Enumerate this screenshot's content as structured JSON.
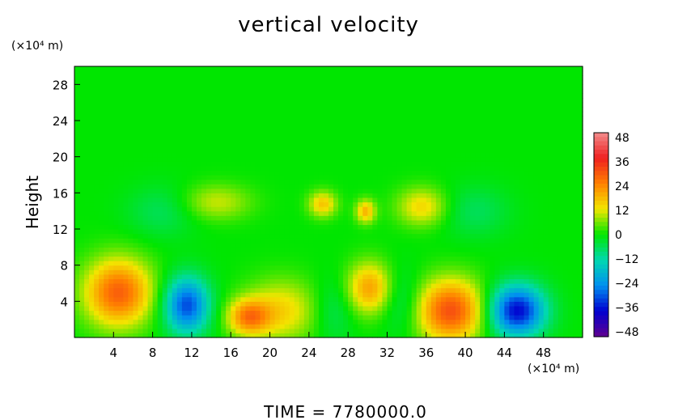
{
  "chart_data": {
    "type": "heatmap",
    "title": "vertical velocity",
    "ylabel": "Height",
    "xlabel": "",
    "x_unit": "(×10⁴ m)",
    "y_unit": "(×10⁴ m)",
    "xlim": [
      0,
      52
    ],
    "ylim": [
      0,
      30
    ],
    "x_ticks": [
      4,
      8,
      12,
      16,
      20,
      24,
      28,
      32,
      36,
      40,
      44,
      48
    ],
    "y_ticks": [
      4,
      8,
      12,
      16,
      20,
      24,
      28
    ],
    "colorbar": {
      "levels": [
        48,
        36,
        24,
        12,
        0,
        -12,
        -24,
        -36,
        -48
      ],
      "range": [
        -48,
        48
      ],
      "colors": [
        "#f28c8c",
        "#ef2020",
        "#ff8000",
        "#f2e600",
        "#00e600",
        "#00d8b0",
        "#0090f0",
        "#0000d0",
        "#600090"
      ]
    },
    "background_value": 0,
    "features": [
      {
        "x": 4.5,
        "y": 5.0,
        "value": 28,
        "sx": 2.4,
        "sy": 2.6
      },
      {
        "x": 11.5,
        "y": 3.6,
        "value": -30,
        "sx": 1.6,
        "sy": 2.2
      },
      {
        "x": 17.8,
        "y": 2.3,
        "value": 22,
        "sx": 1.5,
        "sy": 1.4
      },
      {
        "x": 21.2,
        "y": 3.0,
        "value": 14,
        "sx": 2.6,
        "sy": 2.4
      },
      {
        "x": 30.2,
        "y": 5.5,
        "value": 20,
        "sx": 1.6,
        "sy": 2.0
      },
      {
        "x": 38.5,
        "y": 3.0,
        "value": 30,
        "sx": 2.4,
        "sy": 2.4
      },
      {
        "x": 45.3,
        "y": 3.0,
        "value": -36,
        "sx": 2.0,
        "sy": 2.0
      },
      {
        "x": 25.4,
        "y": 14.8,
        "value": 16,
        "sx": 1.0,
        "sy": 1.0
      },
      {
        "x": 29.8,
        "y": 14.0,
        "value": 18,
        "sx": 0.7,
        "sy": 0.9
      },
      {
        "x": 35.6,
        "y": 14.5,
        "value": 14,
        "sx": 1.8,
        "sy": 1.5
      },
      {
        "x": 14.5,
        "y": 15.0,
        "value": 10,
        "sx": 2.5,
        "sy": 1.4
      },
      {
        "x": 9.0,
        "y": 14.0,
        "value": -6,
        "sx": 2.5,
        "sy": 2.0
      },
      {
        "x": 41.0,
        "y": 14.0,
        "value": -6,
        "sx": 2.5,
        "sy": 2.0
      },
      {
        "x": 26.5,
        "y": 3.0,
        "value": -6,
        "sx": 1.5,
        "sy": 2.5
      },
      {
        "x": 33.5,
        "y": 4.0,
        "value": -7,
        "sx": 1.5,
        "sy": 2.5
      }
    ]
  },
  "footer": {
    "time_label": "TIME  =  7780000.0"
  }
}
